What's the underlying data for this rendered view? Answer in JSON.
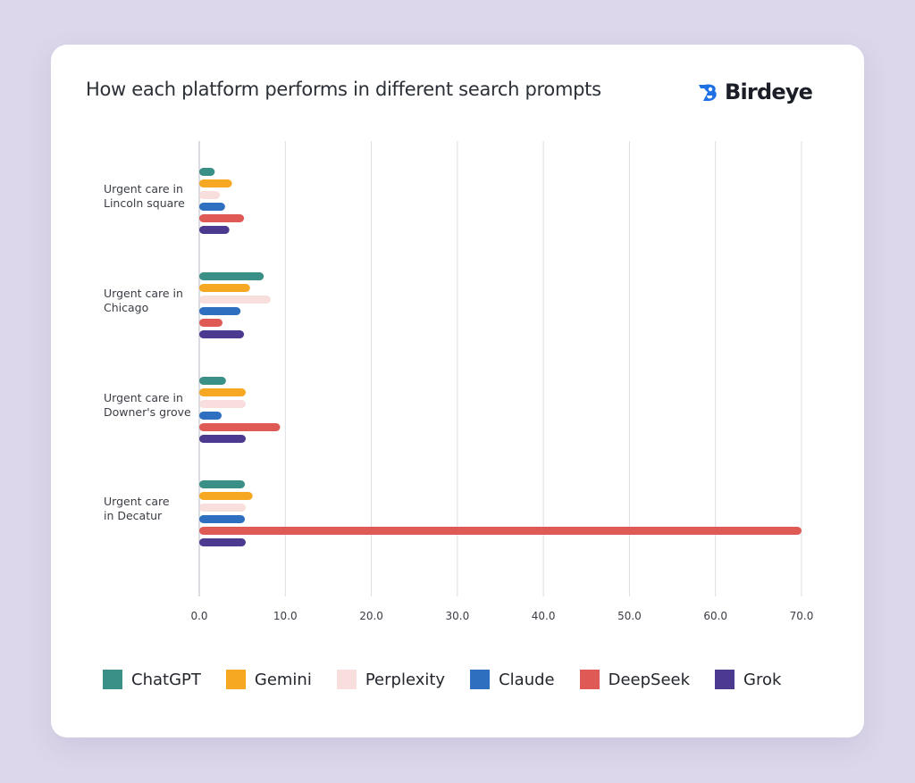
{
  "header": {
    "title": "How each platform performs in different search prompts",
    "brand": "Birdeye",
    "brand_icon": "birdeye-logo-icon",
    "brand_color": "#1f6fe5"
  },
  "chart_data": {
    "type": "bar",
    "orientation": "horizontal",
    "title": "How each platform performs in different search prompts",
    "xlabel": "",
    "ylabel": "",
    "xlim": [
      0,
      70
    ],
    "x_ticks": [
      "0.0",
      "10.0",
      "20.0",
      "30.0",
      "40.0",
      "50.0",
      "60.0",
      "70.0"
    ],
    "grid": true,
    "legend_position": "bottom",
    "categories": [
      [
        "Urgent care in",
        "Lincoln square"
      ],
      [
        "Urgent care in",
        "Chicago"
      ],
      [
        "Urgent care in",
        "Downer's grove"
      ],
      [
        "Urgent care",
        "in  Decatur"
      ]
    ],
    "series": [
      {
        "name": "ChatGPT",
        "color": "#3a8f86",
        "values": [
          1.8,
          7.5,
          3.1,
          5.3
        ]
      },
      {
        "name": "Gemini",
        "color": "#f7a823",
        "values": [
          3.8,
          5.9,
          5.4,
          6.2
        ]
      },
      {
        "name": "Perplexity",
        "color": "#f9dede",
        "values": [
          2.4,
          8.3,
          5.4,
          5.4
        ]
      },
      {
        "name": "Claude",
        "color": "#2e6fbf",
        "values": [
          3.0,
          4.8,
          2.6,
          5.3
        ]
      },
      {
        "name": "DeepSeek",
        "color": "#e05a55",
        "values": [
          5.2,
          2.7,
          9.4,
          70.0
        ]
      },
      {
        "name": "Grok",
        "color": "#4b3a8f",
        "values": [
          3.5,
          5.2,
          5.4,
          5.4
        ]
      }
    ]
  }
}
